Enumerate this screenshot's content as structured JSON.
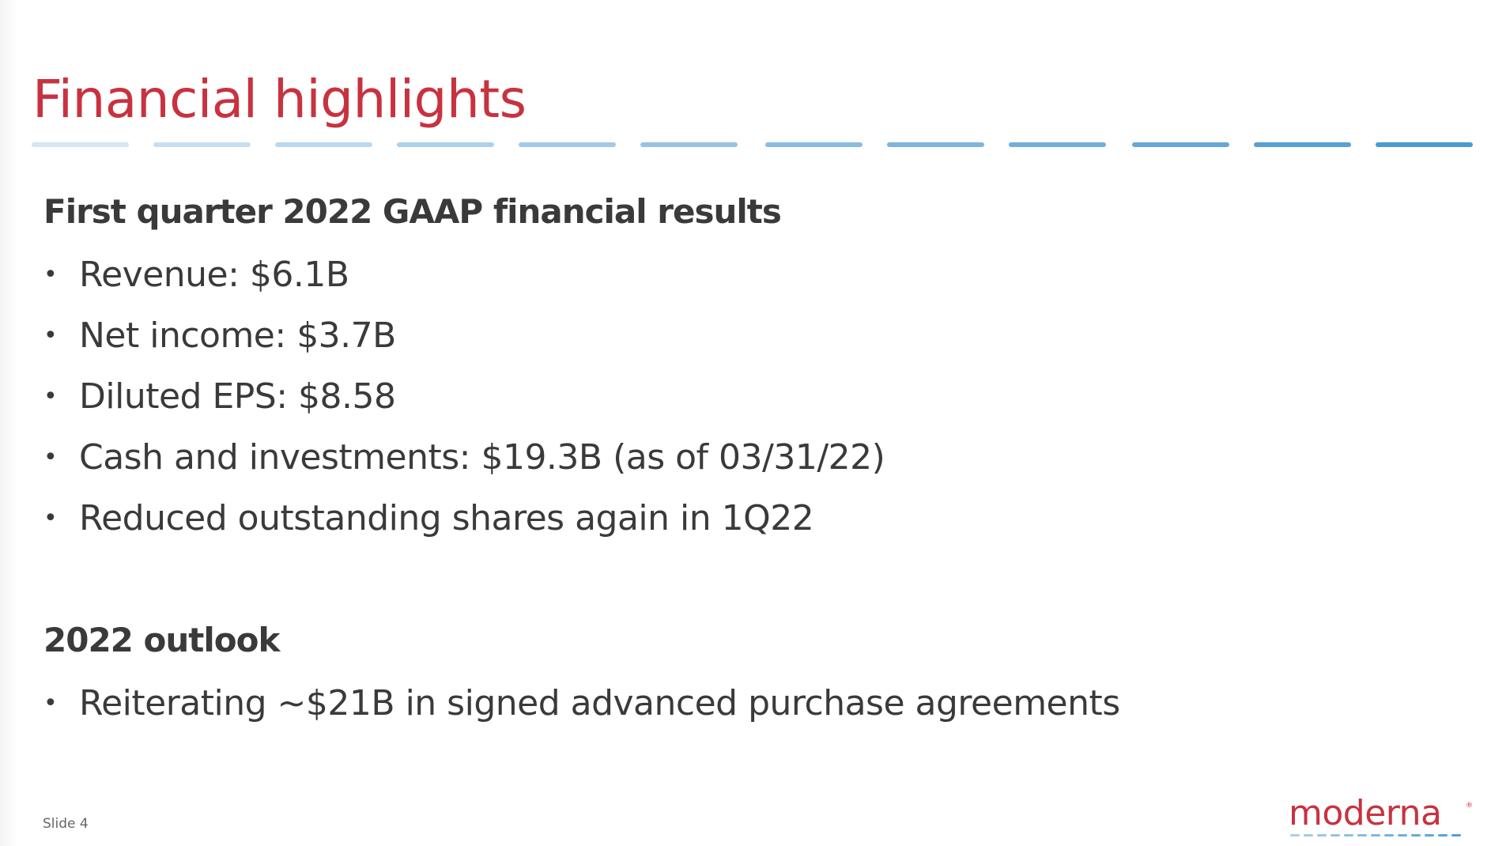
{
  "slide": {
    "title": "Financial highlights",
    "sections": [
      {
        "heading": "First quarter 2022 GAAP financial results",
        "items": [
          "Revenue: $6.1B",
          "Net income: $3.7B",
          "Diluted EPS: $8.58",
          "Cash and investments: $19.3B (as of 03/31/22)",
          "Reduced outstanding shares again in 1Q22"
        ]
      },
      {
        "heading": "2022 outlook",
        "items": [
          "Reiterating ~$21B in signed advanced purchase agreements"
        ]
      }
    ],
    "bullet_glyph": "•",
    "footer": {
      "slide_label": "Slide 4"
    },
    "logo": {
      "wordmark": "moderna",
      "trademark": "®"
    }
  },
  "colors": {
    "title": "#c8323f",
    "text": "#3a3a3a",
    "divider_start": "#cfe4f2",
    "divider_end": "#4a98cc",
    "logo_red": "#c8323f",
    "logo_dash": "#7fb8e0"
  }
}
